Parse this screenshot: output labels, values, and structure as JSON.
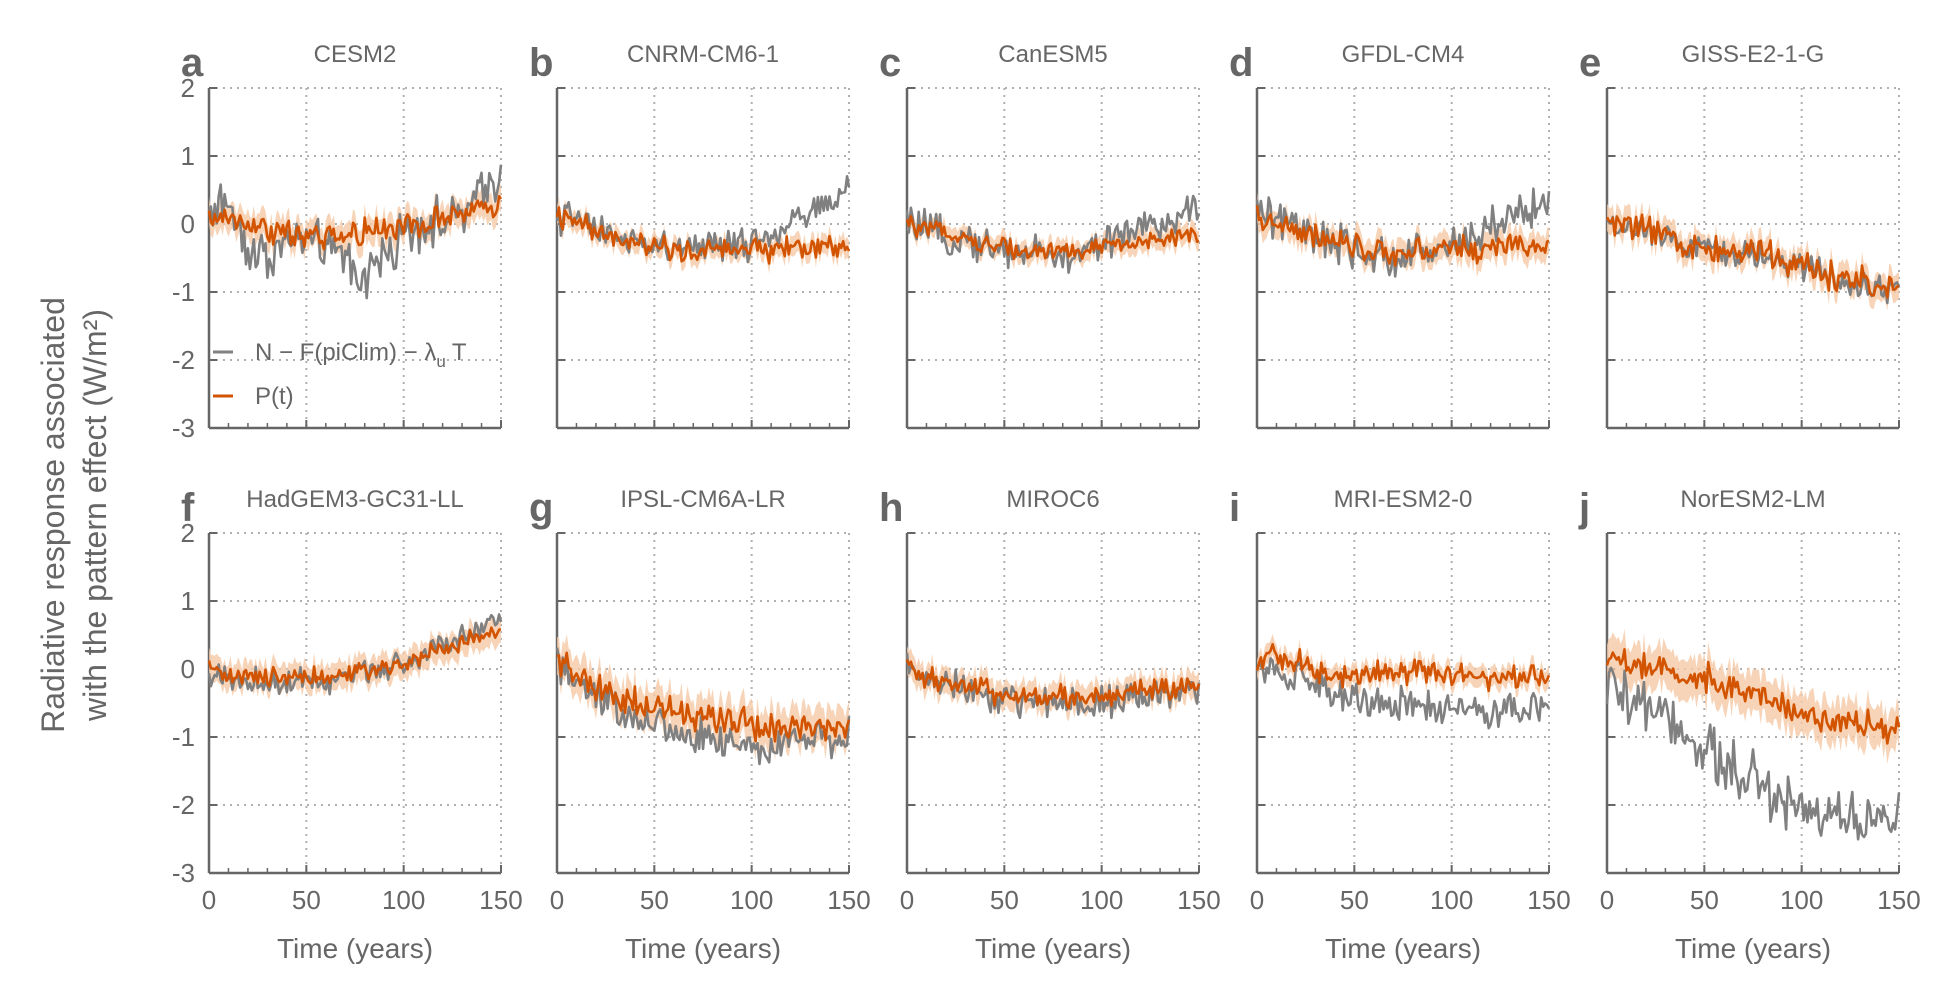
{
  "figure": {
    "ylabel_line1": "Radiative response associated",
    "ylabel_line2": "with the pattern effect (W/m²)",
    "xlabel": "Time (years)",
    "legend": [
      {
        "label": "N − F(piClim) − λ",
        "subscript": "u",
        "suffix": "T",
        "color": "#808080"
      },
      {
        "label": "P(t)",
        "subscript": "",
        "suffix": "",
        "color": "#d35400"
      }
    ],
    "colors": {
      "obs": "#808080",
      "pred": "#d35400",
      "band": "#f5c9a6",
      "axis": "#666666",
      "grid": "#b0b0b0"
    }
  },
  "chart_data": [
    {
      "type": "line",
      "letter": "a",
      "title": "CESM2",
      "xlim": [
        0,
        150
      ],
      "ylim": [
        -3,
        2
      ],
      "xticks": [
        0,
        50,
        100,
        150
      ],
      "yticks": [
        -3,
        -2,
        -1,
        0,
        1,
        2
      ],
      "grid": true,
      "series": [
        {
          "name": "N − F(piClim) − λuT",
          "x": [
            0,
            10,
            20,
            30,
            40,
            50,
            60,
            70,
            80,
            90,
            100,
            110,
            120,
            130,
            140,
            150
          ],
          "y": [
            0.2,
            0.3,
            -0.3,
            -0.5,
            -0.3,
            -0.2,
            -0.4,
            -0.5,
            -0.8,
            -0.4,
            -0.2,
            0.0,
            0.1,
            0.1,
            0.5,
            0.7
          ],
          "noise": 0.35
        },
        {
          "name": "P(t)",
          "x": [
            0,
            10,
            20,
            30,
            40,
            50,
            60,
            70,
            80,
            90,
            100,
            110,
            120,
            130,
            140,
            150
          ],
          "y": [
            0.1,
            0.1,
            0.0,
            -0.1,
            -0.1,
            -0.2,
            -0.2,
            -0.2,
            -0.1,
            -0.1,
            0.0,
            0.0,
            0.1,
            0.1,
            0.2,
            0.3
          ],
          "noise": 0.2,
          "band": 0.2
        }
      ]
    },
    {
      "type": "line",
      "letter": "b",
      "title": "CNRM-CM6-1",
      "xlim": [
        0,
        150
      ],
      "ylim": [
        -3,
        2
      ],
      "xticks": [
        0,
        50,
        100,
        150
      ],
      "yticks": [
        -3,
        -2,
        -1,
        0,
        1,
        2
      ],
      "grid": true,
      "series": [
        {
          "name": "N − F(piClim) − λuT",
          "x": [
            0,
            10,
            20,
            30,
            40,
            50,
            60,
            70,
            80,
            90,
            100,
            110,
            120,
            130,
            140,
            150
          ],
          "y": [
            0.1,
            0.1,
            -0.1,
            -0.2,
            -0.3,
            -0.3,
            -0.4,
            -0.3,
            -0.4,
            -0.3,
            -0.3,
            -0.2,
            0.0,
            0.1,
            0.3,
            0.5
          ],
          "noise": 0.25
        },
        {
          "name": "P(t)",
          "x": [
            0,
            10,
            20,
            30,
            40,
            50,
            60,
            70,
            80,
            90,
            100,
            110,
            120,
            130,
            140,
            150
          ],
          "y": [
            0.1,
            0.0,
            -0.1,
            -0.2,
            -0.3,
            -0.3,
            -0.4,
            -0.4,
            -0.4,
            -0.4,
            -0.3,
            -0.4,
            -0.3,
            -0.4,
            -0.3,
            -0.4
          ],
          "noise": 0.18,
          "band": 0.15
        }
      ]
    },
    {
      "type": "line",
      "letter": "c",
      "title": "CanESM5",
      "xlim": [
        0,
        150
      ],
      "ylim": [
        -3,
        2
      ],
      "xticks": [
        0,
        50,
        100,
        150
      ],
      "yticks": [
        -3,
        -2,
        -1,
        0,
        1,
        2
      ],
      "grid": true,
      "series": [
        {
          "name": "N − F(piClim) − λuT",
          "x": [
            0,
            10,
            20,
            30,
            40,
            50,
            60,
            70,
            80,
            90,
            100,
            110,
            120,
            130,
            140,
            150
          ],
          "y": [
            0.0,
            -0.1,
            -0.2,
            -0.2,
            -0.3,
            -0.4,
            -0.4,
            -0.4,
            -0.5,
            -0.4,
            -0.3,
            -0.2,
            -0.1,
            0.0,
            0.1,
            0.2
          ],
          "noise": 0.28
        },
        {
          "name": "P(t)",
          "x": [
            0,
            10,
            20,
            30,
            40,
            50,
            60,
            70,
            80,
            90,
            100,
            110,
            120,
            130,
            140,
            150
          ],
          "y": [
            0.0,
            -0.1,
            -0.1,
            -0.2,
            -0.3,
            -0.3,
            -0.4,
            -0.4,
            -0.4,
            -0.4,
            -0.3,
            -0.3,
            -0.3,
            -0.2,
            -0.2,
            -0.2
          ],
          "noise": 0.15,
          "band": 0.15
        }
      ]
    },
    {
      "type": "line",
      "letter": "d",
      "title": "GFDL-CM4",
      "xlim": [
        0,
        150
      ],
      "ylim": [
        -3,
        2
      ],
      "xticks": [
        0,
        50,
        100,
        150
      ],
      "yticks": [
        -3,
        -2,
        -1,
        0,
        1,
        2
      ],
      "grid": true,
      "series": [
        {
          "name": "N − F(piClim) − λuT",
          "x": [
            0,
            10,
            20,
            30,
            40,
            50,
            60,
            70,
            80,
            90,
            100,
            110,
            120,
            130,
            140,
            150
          ],
          "y": [
            0.2,
            0.1,
            -0.1,
            -0.2,
            -0.3,
            -0.4,
            -0.5,
            -0.5,
            -0.4,
            -0.4,
            -0.3,
            -0.2,
            -0.1,
            0.1,
            0.2,
            0.3
          ],
          "noise": 0.3
        },
        {
          "name": "P(t)",
          "x": [
            0,
            10,
            20,
            30,
            40,
            50,
            60,
            70,
            80,
            90,
            100,
            110,
            120,
            130,
            140,
            150
          ],
          "y": [
            0.1,
            0.0,
            -0.1,
            -0.2,
            -0.3,
            -0.3,
            -0.4,
            -0.4,
            -0.4,
            -0.4,
            -0.3,
            -0.4,
            -0.3,
            -0.3,
            -0.3,
            -0.3
          ],
          "noise": 0.2,
          "band": 0.2
        }
      ]
    },
    {
      "type": "line",
      "letter": "e",
      "title": "GISS-E2-1-G",
      "xlim": [
        0,
        150
      ],
      "ylim": [
        -3,
        2
      ],
      "xticks": [
        0,
        50,
        100,
        150
      ],
      "yticks": [
        -3,
        -2,
        -1,
        0,
        1,
        2
      ],
      "grid": true,
      "series": [
        {
          "name": "N − F(piClim) − λuT",
          "x": [
            0,
            10,
            20,
            30,
            40,
            50,
            60,
            70,
            80,
            90,
            100,
            110,
            120,
            130,
            140,
            150
          ],
          "y": [
            0.0,
            -0.1,
            -0.1,
            -0.2,
            -0.3,
            -0.3,
            -0.4,
            -0.4,
            -0.5,
            -0.5,
            -0.6,
            -0.7,
            -0.8,
            -0.9,
            -0.9,
            -1.0
          ],
          "noise": 0.22
        },
        {
          "name": "P(t)",
          "x": [
            0,
            10,
            20,
            30,
            40,
            50,
            60,
            70,
            80,
            90,
            100,
            110,
            120,
            130,
            140,
            150
          ],
          "y": [
            0.0,
            0.0,
            -0.1,
            -0.2,
            -0.3,
            -0.3,
            -0.4,
            -0.4,
            -0.4,
            -0.5,
            -0.6,
            -0.7,
            -0.8,
            -0.8,
            -0.9,
            -0.9
          ],
          "noise": 0.25,
          "band": 0.2
        }
      ]
    },
    {
      "type": "line",
      "letter": "f",
      "title": "HadGEM3-GC31-LL",
      "xlim": [
        0,
        150
      ],
      "ylim": [
        -3,
        2
      ],
      "xticks": [
        0,
        50,
        100,
        150
      ],
      "yticks": [
        -3,
        -2,
        -1,
        0,
        1,
        2
      ],
      "grid": true,
      "series": [
        {
          "name": "N − F(piClim) − λuT",
          "x": [
            0,
            10,
            20,
            30,
            40,
            50,
            60,
            70,
            80,
            90,
            100,
            110,
            120,
            130,
            140,
            150
          ],
          "y": [
            -0.1,
            -0.1,
            -0.2,
            -0.2,
            -0.2,
            -0.1,
            -0.2,
            -0.1,
            0.0,
            0.0,
            0.1,
            0.2,
            0.4,
            0.5,
            0.6,
            0.7
          ],
          "noise": 0.2
        },
        {
          "name": "P(t)",
          "x": [
            0,
            10,
            20,
            30,
            40,
            50,
            60,
            70,
            80,
            90,
            100,
            110,
            120,
            130,
            140,
            150
          ],
          "y": [
            0.0,
            -0.1,
            -0.1,
            -0.1,
            -0.1,
            -0.1,
            -0.1,
            -0.1,
            0.0,
            0.0,
            0.1,
            0.2,
            0.3,
            0.4,
            0.5,
            0.5
          ],
          "noise": 0.15,
          "band": 0.2
        }
      ]
    },
    {
      "type": "line",
      "letter": "g",
      "title": "IPSL-CM6A-LR",
      "xlim": [
        0,
        150
      ],
      "ylim": [
        -3,
        2
      ],
      "xticks": [
        0,
        50,
        100,
        150
      ],
      "yticks": [
        -3,
        -2,
        -1,
        0,
        1,
        2
      ],
      "grid": true,
      "series": [
        {
          "name": "N − F(piClim) − λuT",
          "x": [
            0,
            10,
            20,
            30,
            40,
            50,
            60,
            70,
            80,
            90,
            100,
            110,
            120,
            130,
            140,
            150
          ],
          "y": [
            0.0,
            -0.2,
            -0.4,
            -0.6,
            -0.7,
            -0.8,
            -0.9,
            -1.0,
            -1.0,
            -1.1,
            -1.1,
            -1.2,
            -1.1,
            -1.0,
            -1.0,
            -0.9
          ],
          "noise": 0.28
        },
        {
          "name": "P(t)",
          "x": [
            0,
            10,
            20,
            30,
            40,
            50,
            60,
            70,
            80,
            90,
            100,
            110,
            120,
            130,
            140,
            150
          ],
          "y": [
            0.1,
            -0.1,
            -0.3,
            -0.4,
            -0.5,
            -0.6,
            -0.6,
            -0.7,
            -0.7,
            -0.8,
            -0.8,
            -0.9,
            -0.9,
            -0.9,
            -0.8,
            -0.8
          ],
          "noise": 0.25,
          "band": 0.28
        }
      ]
    },
    {
      "type": "line",
      "letter": "h",
      "title": "MIROC6",
      "xlim": [
        0,
        150
      ],
      "ylim": [
        -3,
        2
      ],
      "xticks": [
        0,
        50,
        100,
        150
      ],
      "yticks": [
        -3,
        -2,
        -1,
        0,
        1,
        2
      ],
      "grid": true,
      "series": [
        {
          "name": "N − F(piClim) − λuT",
          "x": [
            0,
            10,
            20,
            30,
            40,
            50,
            60,
            70,
            80,
            90,
            100,
            110,
            120,
            130,
            140,
            150
          ],
          "y": [
            0.0,
            -0.1,
            -0.2,
            -0.3,
            -0.4,
            -0.4,
            -0.5,
            -0.5,
            -0.5,
            -0.5,
            -0.5,
            -0.5,
            -0.4,
            -0.4,
            -0.4,
            -0.3
          ],
          "noise": 0.25
        },
        {
          "name": "P(t)",
          "x": [
            0,
            10,
            20,
            30,
            40,
            50,
            60,
            70,
            80,
            90,
            100,
            110,
            120,
            130,
            140,
            150
          ],
          "y": [
            0.0,
            -0.1,
            -0.2,
            -0.3,
            -0.3,
            -0.4,
            -0.4,
            -0.4,
            -0.4,
            -0.4,
            -0.4,
            -0.4,
            -0.3,
            -0.3,
            -0.3,
            -0.2
          ],
          "noise": 0.18,
          "band": 0.2
        }
      ]
    },
    {
      "type": "line",
      "letter": "i",
      "title": "MRI-ESM2-0",
      "xlim": [
        0,
        150
      ],
      "ylim": [
        -3,
        2
      ],
      "xticks": [
        0,
        50,
        100,
        150
      ],
      "yticks": [
        -3,
        -2,
        -1,
        0,
        1,
        2
      ],
      "grid": true,
      "series": [
        {
          "name": "N − F(piClim) − λuT",
          "x": [
            0,
            10,
            20,
            30,
            40,
            50,
            60,
            70,
            80,
            90,
            100,
            110,
            120,
            130,
            140,
            150
          ],
          "y": [
            0.1,
            0.0,
            -0.1,
            -0.2,
            -0.3,
            -0.4,
            -0.5,
            -0.5,
            -0.5,
            -0.6,
            -0.6,
            -0.6,
            -0.6,
            -0.6,
            -0.6,
            -0.6
          ],
          "noise": 0.25
        },
        {
          "name": "P(t)",
          "x": [
            0,
            10,
            20,
            30,
            40,
            50,
            60,
            70,
            80,
            90,
            100,
            110,
            120,
            130,
            140,
            150
          ],
          "y": [
            0.2,
            0.2,
            0.1,
            0.0,
            -0.1,
            -0.1,
            0.0,
            0.0,
            0.0,
            0.0,
            -0.1,
            -0.1,
            -0.1,
            -0.1,
            -0.1,
            -0.2
          ],
          "noise": 0.22,
          "band": 0.15
        }
      ]
    },
    {
      "type": "line",
      "letter": "j",
      "title": "NorESM2-LM",
      "xlim": [
        0,
        150
      ],
      "ylim": [
        -3,
        2
      ],
      "xticks": [
        0,
        50,
        100,
        150
      ],
      "yticks": [
        -3,
        -2,
        -1,
        0,
        1,
        2
      ],
      "grid": true,
      "series": [
        {
          "name": "N − F(piClim) − λuT",
          "x": [
            0,
            10,
            20,
            30,
            40,
            50,
            60,
            70,
            80,
            90,
            100,
            110,
            120,
            130,
            140,
            150
          ],
          "y": [
            -0.2,
            -0.4,
            -0.6,
            -0.7,
            -0.9,
            -1.1,
            -1.3,
            -1.5,
            -1.7,
            -1.9,
            -2.0,
            -2.1,
            -2.2,
            -2.2,
            -2.2,
            -2.2
          ],
          "noise": 0.45
        },
        {
          "name": "P(t)",
          "x": [
            0,
            10,
            20,
            30,
            40,
            50,
            60,
            70,
            80,
            90,
            100,
            110,
            120,
            130,
            140,
            150
          ],
          "y": [
            0.2,
            0.1,
            0.0,
            0.0,
            -0.1,
            -0.1,
            -0.2,
            -0.3,
            -0.4,
            -0.5,
            -0.6,
            -0.7,
            -0.8,
            -0.8,
            -0.9,
            -0.9
          ],
          "noise": 0.25,
          "band": 0.3
        }
      ]
    }
  ]
}
